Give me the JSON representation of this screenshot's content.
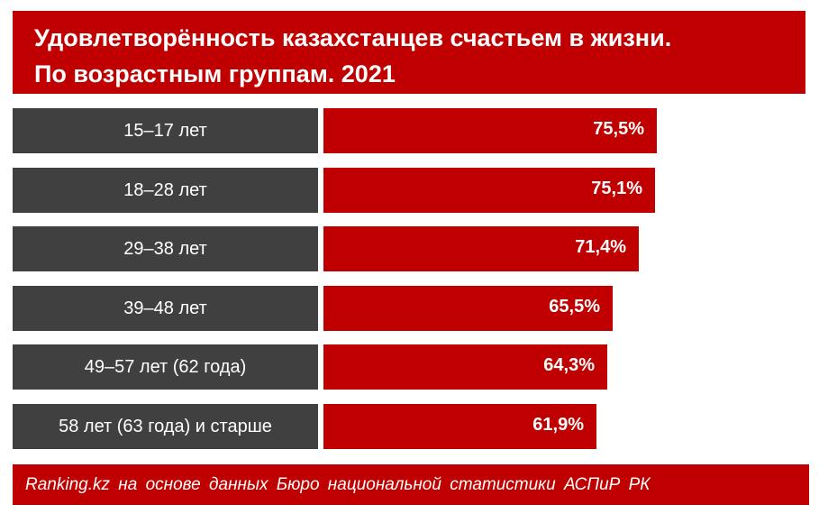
{
  "chart_data": {
    "type": "bar",
    "orientation": "horizontal",
    "title": "Удовлетворённость казахстанцев счастьем в жизни.",
    "subtitle": "По возрастным группам. 2021",
    "categories": [
      "15–17 лет",
      "18–28 лет",
      "29–38 лет",
      "39–48 лет",
      "49–57 лет  (62 года)",
      "58 лет (63 года) и старше"
    ],
    "values": [
      75.5,
      75.1,
      71.4,
      65.5,
      64.3,
      61.9
    ],
    "value_labels": [
      "75,5%",
      "75,1%",
      "71,4%",
      "65,5%",
      "64,3%",
      "61,9%"
    ],
    "unit": "%",
    "xlabel": "",
    "ylabel": "",
    "grid": false,
    "legend": "none"
  },
  "source": "Ranking.kz на основе данных Бюро национальной статистики АСПиР РК",
  "colors": {
    "accent": "#c00000",
    "category_box": "#404040",
    "text": "#ffffff"
  }
}
